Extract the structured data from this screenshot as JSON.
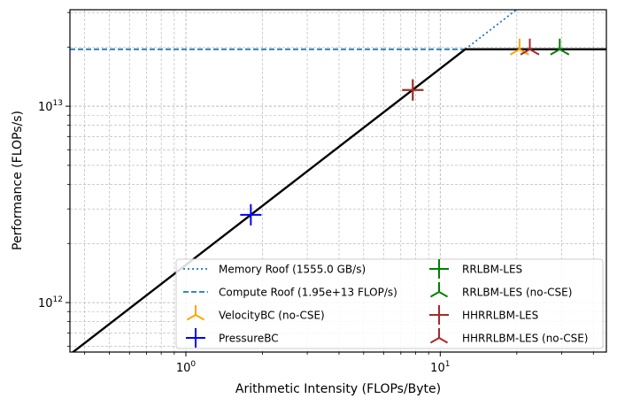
{
  "chart_data": {
    "type": "scatter",
    "xlabel": "Arithmetic Intensity (FLOPs/Byte)",
    "ylabel": "Performance (FLOPs/s)",
    "xscale": "log",
    "yscale": "log",
    "xlim": [
      0.35,
      45
    ],
    "ylim": [
      560000000000.0,
      31000000000000.0
    ],
    "grid": true,
    "legend_position": "lower-right",
    "x_ticks": [
      {
        "value": 1,
        "base": "10",
        "exp": "0"
      },
      {
        "value": 10,
        "base": "10",
        "exp": "1"
      }
    ],
    "y_ticks": [
      {
        "value": 1000000000000.0,
        "base": "10",
        "exp": "12"
      },
      {
        "value": 10000000000000.0,
        "base": "10",
        "exp": "13"
      }
    ],
    "roofline": {
      "memory_bandwidth_bytes_per_s": 1555000000000.0,
      "compute_peak_flops": 19500000000000.0,
      "ridge_point": 12.54,
      "color": "#000000"
    },
    "series": [
      {
        "name": "Memory Roof (1555.0 GB/s)",
        "kind": "memory_roof",
        "color": "#1f77b4",
        "dash": "dotted"
      },
      {
        "name": "Compute Roof (1.95e+13 FLOP/s)",
        "kind": "compute_roof",
        "color": "#1f77b4",
        "dash": "dashed"
      },
      {
        "name": "VelocityBC (no-CSE)",
        "kind": "point",
        "marker": "tri_down",
        "color": "#ffa500",
        "x": 20.5,
        "y": 19500000000000.0
      },
      {
        "name": "PressureBC",
        "kind": "point",
        "marker": "plus",
        "color": "#0000ff",
        "x": 1.8,
        "y": 2800000000000.0
      },
      {
        "name": "RRLBM-LES",
        "kind": "point",
        "marker": "plus",
        "color": "#008000",
        "x": 7.8,
        "y": 12100000000000.0
      },
      {
        "name": "RRLBM-LES (no-CSE)",
        "kind": "point",
        "marker": "tri_down",
        "color": "#008000",
        "x": 29.5,
        "y": 19500000000000.0
      },
      {
        "name": "HHRRLBM-LES",
        "kind": "point",
        "marker": "plus",
        "color": "#a52a2a",
        "x": 7.8,
        "y": 12100000000000.0
      },
      {
        "name": "HHRRLBM-LES (no-CSE)",
        "kind": "point",
        "marker": "tri_down",
        "color": "#a52a2a",
        "x": 22.5,
        "y": 19500000000000.0
      }
    ],
    "legend_columns": [
      [
        "Memory Roof (1555.0 GB/s)",
        "Compute Roof (1.95e+13 FLOP/s)",
        "VelocityBC (no-CSE)",
        "PressureBC"
      ],
      [
        "RRLBM-LES",
        "RRLBM-LES (no-CSE)",
        "HHRRLBM-LES",
        "HHRRLBM-LES (no-CSE)"
      ]
    ]
  }
}
